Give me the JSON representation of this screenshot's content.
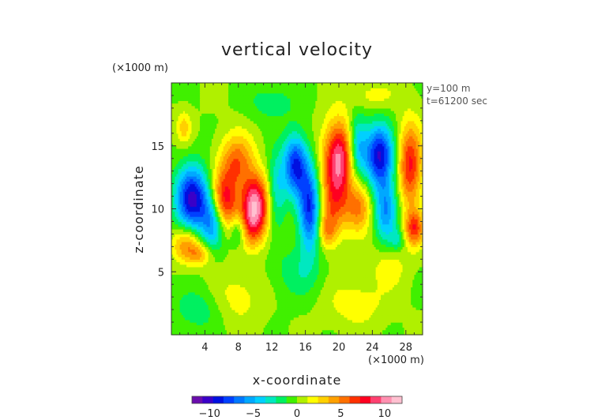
{
  "chart_data": {
    "type": "heatmap",
    "title": "vertical velocity",
    "xlabel": "x-coordinate",
    "ylabel": "z-coordinate",
    "x_unit": "(×1000 m)",
    "y_unit": "(×1000 m)",
    "annotations": [
      "y=100 m",
      "t=61200 sec"
    ],
    "xlim": [
      0,
      30
    ],
    "ylim": [
      0,
      20
    ],
    "x_ticks": [
      4,
      8,
      12,
      16,
      20,
      24,
      28
    ],
    "y_ticks": [
      5,
      10,
      15
    ],
    "colorbar": {
      "range": [
        -12,
        12
      ],
      "ticks": [
        -10,
        -5,
        0,
        5,
        10
      ],
      "colors": [
        "#6a0dad",
        "#3a00c8",
        "#0010e0",
        "#0040ff",
        "#0078ff",
        "#00a8ff",
        "#00d0ff",
        "#00e8c0",
        "#00f060",
        "#40f000",
        "#b0f000",
        "#ffff00",
        "#ffd000",
        "#ffa000",
        "#ff7000",
        "#ff3000",
        "#ff0020",
        "#ff4070",
        "#ff90b0",
        "#ffc0d0"
      ]
    },
    "features": [
      {
        "x": 2.5,
        "z": 10.8,
        "w": -10.0,
        "sx": 1.4,
        "sz": 1.8
      },
      {
        "x": 5.0,
        "z": 9.0,
        "w": -6.0,
        "sx": 1.0,
        "sz": 1.5
      },
      {
        "x": 1.8,
        "z": 7.2,
        "w": 5.0,
        "sx": 1.2,
        "sz": 1.0
      },
      {
        "x": 3.5,
        "z": 6.4,
        "w": 3.5,
        "sx": 1.0,
        "sz": 0.6
      },
      {
        "x": 6.3,
        "z": 10.6,
        "w": 8.0,
        "sx": 1.1,
        "sz": 1.6
      },
      {
        "x": 7.8,
        "z": 13.8,
        "w": 5.5,
        "sx": 1.4,
        "sz": 1.5
      },
      {
        "x": 10.0,
        "z": 10.5,
        "w": 10.0,
        "sx": 1.2,
        "sz": 1.6
      },
      {
        "x": 9.5,
        "z": 8.5,
        "w": 4.0,
        "sx": 1.2,
        "sz": 1.2
      },
      {
        "x": 8.0,
        "z": 8.3,
        "w": -4.0,
        "sx": 0.7,
        "sz": 0.9
      },
      {
        "x": 12.5,
        "z": 11.5,
        "w": -4.0,
        "sx": 0.8,
        "sz": 2.0
      },
      {
        "x": 14.8,
        "z": 13.5,
        "w": -8.5,
        "sx": 1.0,
        "sz": 1.7
      },
      {
        "x": 16.5,
        "z": 10.0,
        "w": -8.5,
        "sx": 0.9,
        "sz": 2.3
      },
      {
        "x": 18.6,
        "z": 8.3,
        "w": 4.0,
        "sx": 0.8,
        "sz": 1.0
      },
      {
        "x": 20.0,
        "z": 14.2,
        "w": 9.5,
        "sx": 1.3,
        "sz": 2.0
      },
      {
        "x": 19.5,
        "z": 10.5,
        "w": 5.0,
        "sx": 1.2,
        "sz": 1.8
      },
      {
        "x": 22.2,
        "z": 15.0,
        "w": -5.5,
        "sx": 0.8,
        "sz": 1.7
      },
      {
        "x": 24.8,
        "z": 14.3,
        "w": -9.5,
        "sx": 1.2,
        "sz": 1.7
      },
      {
        "x": 22.4,
        "z": 10.2,
        "w": 5.0,
        "sx": 1.1,
        "sz": 1.4
      },
      {
        "x": 25.6,
        "z": 10.0,
        "w": -6.0,
        "sx": 1.0,
        "sz": 1.8
      },
      {
        "x": 28.5,
        "z": 13.5,
        "w": 7.5,
        "sx": 1.0,
        "sz": 2.3
      },
      {
        "x": 29.0,
        "z": 8.5,
        "w": 6.5,
        "sx": 0.8,
        "sz": 1.0
      },
      {
        "x": 27.0,
        "z": 7.5,
        "w": -2.5,
        "sx": 0.6,
        "sz": 0.6
      },
      {
        "x": 1.5,
        "z": 16.5,
        "w": 3.0,
        "sx": 0.6,
        "sz": 0.9
      },
      {
        "x": 15.0,
        "z": 5.0,
        "w": -2.0,
        "sx": 2.0,
        "sz": 1.5
      },
      {
        "x": 8.0,
        "z": 3.0,
        "w": 1.8,
        "sx": 2.0,
        "sz": 1.5
      },
      {
        "x": 22.0,
        "z": 2.5,
        "w": 2.0,
        "sx": 2.5,
        "sz": 1.3
      },
      {
        "x": 3.0,
        "z": 2.0,
        "w": -2.0,
        "sx": 2.0,
        "sz": 1.2
      },
      {
        "x": 26.0,
        "z": 5.5,
        "w": 2.0,
        "sx": 1.5,
        "sz": 1.2
      },
      {
        "x": 12.0,
        "z": 18.5,
        "w": -2.0,
        "sx": 2.0,
        "sz": 1.0
      },
      {
        "x": 24.0,
        "z": 19.0,
        "w": 1.8,
        "sx": 2.0,
        "sz": 0.8
      }
    ]
  }
}
